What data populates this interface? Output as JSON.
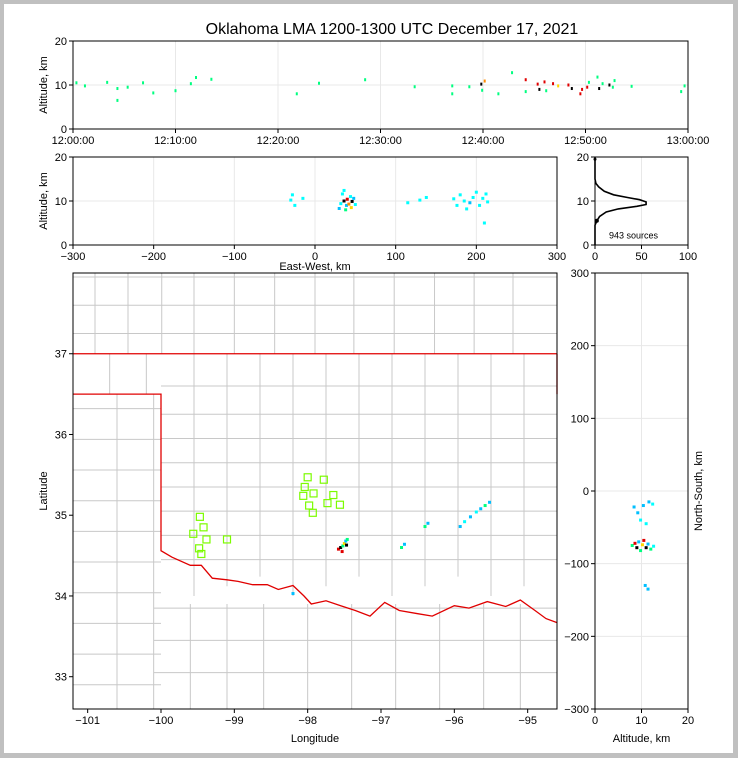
{
  "title": "Oklahoma LMA 1200-1300 UTC December 17, 2021",
  "colors": {
    "background": "#c0c0c0",
    "state": "#e00000",
    "county": "#c8c8c8",
    "stations": "#7cfc00"
  },
  "chart_data": [
    {
      "id": "time-altitude",
      "type": "scatter",
      "xlabel": "",
      "ylabel": "Altitude, km",
      "xlim": [
        "12:00:00",
        "13:00:00"
      ],
      "ylim": [
        0,
        20
      ],
      "x_ticks": [
        "12:00:00",
        "12:10:00",
        "12:20:00",
        "12:30:00",
        "12:40:00",
        "12:50:00",
        "13:00:00"
      ],
      "y_ticks": [
        "0",
        "10",
        "20"
      ],
      "points": [
        [
          "12:00:20",
          10.5,
          "#00ff80"
        ],
        [
          "12:01:10",
          9.8,
          "#00ff80"
        ],
        [
          "12:03:20",
          10.6,
          "#00ff80"
        ],
        [
          "12:04:20",
          9.2,
          "#00ff80"
        ],
        [
          "12:04:20",
          6.5,
          "#00ff80"
        ],
        [
          "12:05:20",
          9.5,
          "#00ff80"
        ],
        [
          "12:06:50",
          10.5,
          "#00ff80"
        ],
        [
          "12:07:50",
          8.2,
          "#00ff80"
        ],
        [
          "12:10:00",
          8.7,
          "#00ff80"
        ],
        [
          "12:11:30",
          10.3,
          "#00ff80"
        ],
        [
          "12:12:00",
          11.7,
          "#00ff80"
        ],
        [
          "12:13:30",
          11.3,
          "#00ff80"
        ],
        [
          "12:21:50",
          8.0,
          "#00ff80"
        ],
        [
          "12:24:00",
          10.4,
          "#00ff80"
        ],
        [
          "12:28:30",
          11.2,
          "#00ff80"
        ],
        [
          "12:33:20",
          9.6,
          "#00ff80"
        ],
        [
          "12:37:00",
          9.8,
          "#00ff80"
        ],
        [
          "12:37:00",
          8.0,
          "#00ff80"
        ],
        [
          "12:38:40",
          9.6,
          "#00ff80"
        ],
        [
          "12:39:50",
          10.2,
          "#000000"
        ],
        [
          "12:39:55",
          8.8,
          "#00ff80"
        ],
        [
          "12:40:10",
          10.9,
          "#ff8c00"
        ],
        [
          "12:41:30",
          8.0,
          "#00ff80"
        ],
        [
          "12:42:50",
          12.8,
          "#00ff80"
        ],
        [
          "12:44:10",
          11.2,
          "#e00000"
        ],
        [
          "12:44:10",
          8.5,
          "#00ff80"
        ],
        [
          "12:45:20",
          10.2,
          "#e00000"
        ],
        [
          "12:45:30",
          9.0,
          "#000000"
        ],
        [
          "12:46:00",
          10.7,
          "#e00000"
        ],
        [
          "12:46:10",
          8.7,
          "#00ff80"
        ],
        [
          "12:46:50",
          10.3,
          "#e00000"
        ],
        [
          "12:47:20",
          9.8,
          "#ffd700"
        ],
        [
          "12:48:20",
          10.0,
          "#e00000"
        ],
        [
          "12:48:40",
          9.2,
          "#000000"
        ],
        [
          "12:49:30",
          8.0,
          "#e00000"
        ],
        [
          "12:49:40",
          9.0,
          "#e00000"
        ],
        [
          "12:50:10",
          9.5,
          "#e00000"
        ],
        [
          "12:50:20",
          10.6,
          "#00ff80"
        ],
        [
          "12:51:10",
          11.8,
          "#00ff80"
        ],
        [
          "12:51:20",
          9.2,
          "#000000"
        ],
        [
          "12:51:40",
          10.3,
          "#00ff80"
        ],
        [
          "12:52:20",
          10.0,
          "#000000"
        ],
        [
          "12:52:40",
          9.5,
          "#00ff80"
        ],
        [
          "12:52:50",
          11.0,
          "#00ff80"
        ],
        [
          "12:54:30",
          9.7,
          "#00ff80"
        ],
        [
          "12:59:20",
          8.5,
          "#00ff80"
        ],
        [
          "12:59:40",
          9.8,
          "#00ff80"
        ]
      ]
    },
    {
      "id": "ew-altitude",
      "type": "scatter",
      "xlabel": "East-West, km",
      "ylabel": "Altitude, km",
      "xlim": [
        -300,
        300
      ],
      "ylim": [
        0,
        20
      ],
      "x_ticks": [
        "−300",
        "−200",
        "−100",
        "0",
        "100",
        "200",
        "300"
      ],
      "y_ticks": [
        "0",
        "10",
        "20"
      ],
      "points": [
        [
          -30,
          10.2,
          "#00ffff"
        ],
        [
          -28,
          11.4,
          "#00ffff"
        ],
        [
          -25,
          9.0,
          "#00ffff"
        ],
        [
          -15,
          10.6,
          "#00ffff"
        ],
        [
          30,
          8.3,
          "#00bfff"
        ],
        [
          32,
          9.4,
          "#00ffff"
        ],
        [
          34,
          11.6,
          "#00ffff"
        ],
        [
          36,
          10.0,
          "#000000"
        ],
        [
          38,
          8.0,
          "#00ff80"
        ],
        [
          39,
          9.0,
          "#00bfff"
        ],
        [
          40,
          10.4,
          "#e00000"
        ],
        [
          42,
          9.3,
          "#ff8c00"
        ],
        [
          44,
          11.0,
          "#00ffff"
        ],
        [
          45,
          8.5,
          "#ffd700"
        ],
        [
          46,
          9.9,
          "#000000"
        ],
        [
          48,
          10.6,
          "#00bfff"
        ],
        [
          50,
          9.2,
          "#00ffff"
        ],
        [
          36,
          12.4,
          "#00ffff"
        ],
        [
          115,
          9.6,
          "#00ffff"
        ],
        [
          130,
          10.2,
          "#00ffff"
        ],
        [
          138,
          10.8,
          "#00ffff"
        ],
        [
          172,
          10.5,
          "#00ffff"
        ],
        [
          176,
          9.0,
          "#00ffff"
        ],
        [
          180,
          11.4,
          "#00ffff"
        ],
        [
          185,
          10.0,
          "#00ffff"
        ],
        [
          188,
          8.2,
          "#00ffff"
        ],
        [
          192,
          9.6,
          "#00bfff"
        ],
        [
          196,
          10.8,
          "#00ffff"
        ],
        [
          200,
          12.0,
          "#00ffff"
        ],
        [
          204,
          9.0,
          "#00ffff"
        ],
        [
          208,
          10.6,
          "#00ffff"
        ],
        [
          210,
          5.0,
          "#00ffff"
        ],
        [
          212,
          11.6,
          "#00ffff"
        ],
        [
          214,
          9.8,
          "#00ffff"
        ]
      ]
    },
    {
      "id": "altitude-histogram",
      "type": "line",
      "xlabel": "",
      "ylabel": "",
      "xlim": [
        0,
        100
      ],
      "ylim": [
        0,
        20
      ],
      "x_ticks": [
        "0",
        "50",
        "100"
      ],
      "y_ticks": [
        "0",
        "10",
        "20"
      ],
      "annotation": "943 sources",
      "profile": [
        [
          0,
          0
        ],
        [
          0,
          4.5
        ],
        [
          2,
          5.5
        ],
        [
          5,
          6.5
        ],
        [
          12,
          7.5
        ],
        [
          25,
          8.2
        ],
        [
          45,
          8.8
        ],
        [
          55,
          9.2
        ],
        [
          55,
          9.8
        ],
        [
          48,
          10.3
        ],
        [
          35,
          10.8
        ],
        [
          20,
          11.4
        ],
        [
          10,
          12.2
        ],
        [
          4,
          13.2
        ],
        [
          1,
          14.0
        ],
        [
          0,
          15.0
        ],
        [
          0,
          20
        ]
      ]
    },
    {
      "id": "plan-view",
      "type": "scatter",
      "xlabel": "Longitude",
      "ylabel": "Latitude",
      "xlim": [
        -101.2,
        -94.6
      ],
      "ylim": [
        32.6,
        38.0
      ],
      "x_ticks": [
        "−101",
        "−100",
        "−99",
        "−98",
        "−97",
        "−96",
        "−95"
      ],
      "y_ticks": [
        "33",
        "34",
        "35",
        "36",
        "37"
      ],
      "stations": [
        [
          -99.56,
          34.77
        ],
        [
          -99.47,
          34.98
        ],
        [
          -99.42,
          34.85
        ],
        [
          -99.38,
          34.7
        ],
        [
          -99.48,
          34.59
        ],
        [
          -99.45,
          34.52
        ],
        [
          -99.1,
          34.7
        ],
        [
          -98.0,
          35.47
        ],
        [
          -98.04,
          35.35
        ],
        [
          -98.06,
          35.24
        ],
        [
          -97.92,
          35.27
        ],
        [
          -97.98,
          35.12
        ],
        [
          -97.93,
          35.03
        ],
        [
          -97.78,
          35.44
        ],
        [
          -97.73,
          35.15
        ],
        [
          -97.65,
          35.25
        ],
        [
          -97.56,
          35.13
        ]
      ],
      "points": [
        [
          -97.58,
          34.58,
          "#e00000"
        ],
        [
          -97.55,
          34.6,
          "#000000"
        ],
        [
          -97.52,
          34.62,
          "#00ff80"
        ],
        [
          -97.5,
          34.65,
          "#ffd700"
        ],
        [
          -97.48,
          34.68,
          "#00bfff"
        ],
        [
          -97.46,
          34.7,
          "#00ff80"
        ],
        [
          -97.53,
          34.55,
          "#e00000"
        ],
        [
          -97.47,
          34.63,
          "#000000"
        ],
        [
          -96.72,
          34.6,
          "#00ff80"
        ],
        [
          -96.68,
          34.64,
          "#00bfff"
        ],
        [
          -96.4,
          34.86,
          "#00ff80"
        ],
        [
          -96.36,
          34.9,
          "#00bfff"
        ],
        [
          -95.92,
          34.86,
          "#00bfff"
        ],
        [
          -95.86,
          34.92,
          "#00ffff"
        ],
        [
          -95.78,
          34.98,
          "#00bfff"
        ],
        [
          -95.7,
          35.04,
          "#00ffff"
        ],
        [
          -95.64,
          35.08,
          "#00bfff"
        ],
        [
          -95.58,
          35.12,
          "#00ff80"
        ],
        [
          -95.52,
          35.16,
          "#00bfff"
        ],
        [
          -98.2,
          34.03,
          "#00bfff"
        ]
      ]
    },
    {
      "id": "altitude-ns",
      "type": "scatter",
      "xlabel": "Altitude, km",
      "ylabel": "North-South, km",
      "xlim": [
        0,
        20
      ],
      "ylim": [
        -300,
        300
      ],
      "x_ticks": [
        "0",
        "10",
        "20"
      ],
      "y_ticks": [
        "−300",
        "−200",
        "−100",
        "0",
        "100",
        "200",
        "300"
      ],
      "points": [
        [
          8.0,
          -75,
          "#00ff80"
        ],
        [
          8.6,
          -72,
          "#e00000"
        ],
        [
          9.0,
          -78,
          "#000000"
        ],
        [
          9.4,
          -70,
          "#00bfff"
        ],
        [
          9.8,
          -82,
          "#00ff80"
        ],
        [
          10.2,
          -74,
          "#ffd700"
        ],
        [
          10.5,
          -68,
          "#e00000"
        ],
        [
          11.0,
          -78,
          "#000000"
        ],
        [
          11.4,
          -73,
          "#00bfff"
        ],
        [
          12.0,
          -80,
          "#00ff80"
        ],
        [
          12.6,
          -76,
          "#00ffff"
        ],
        [
          9.2,
          -30,
          "#00bfff"
        ],
        [
          9.8,
          -40,
          "#00ffff"
        ],
        [
          10.4,
          -20,
          "#00bfff"
        ],
        [
          11.0,
          -45,
          "#00ffff"
        ],
        [
          11.6,
          -15,
          "#00bfff"
        ],
        [
          12.4,
          -18,
          "#00ffff"
        ],
        [
          10.8,
          -130,
          "#00bfff"
        ],
        [
          11.4,
          -135,
          "#00bfff"
        ],
        [
          8.4,
          -22,
          "#00bfff"
        ]
      ]
    }
  ]
}
